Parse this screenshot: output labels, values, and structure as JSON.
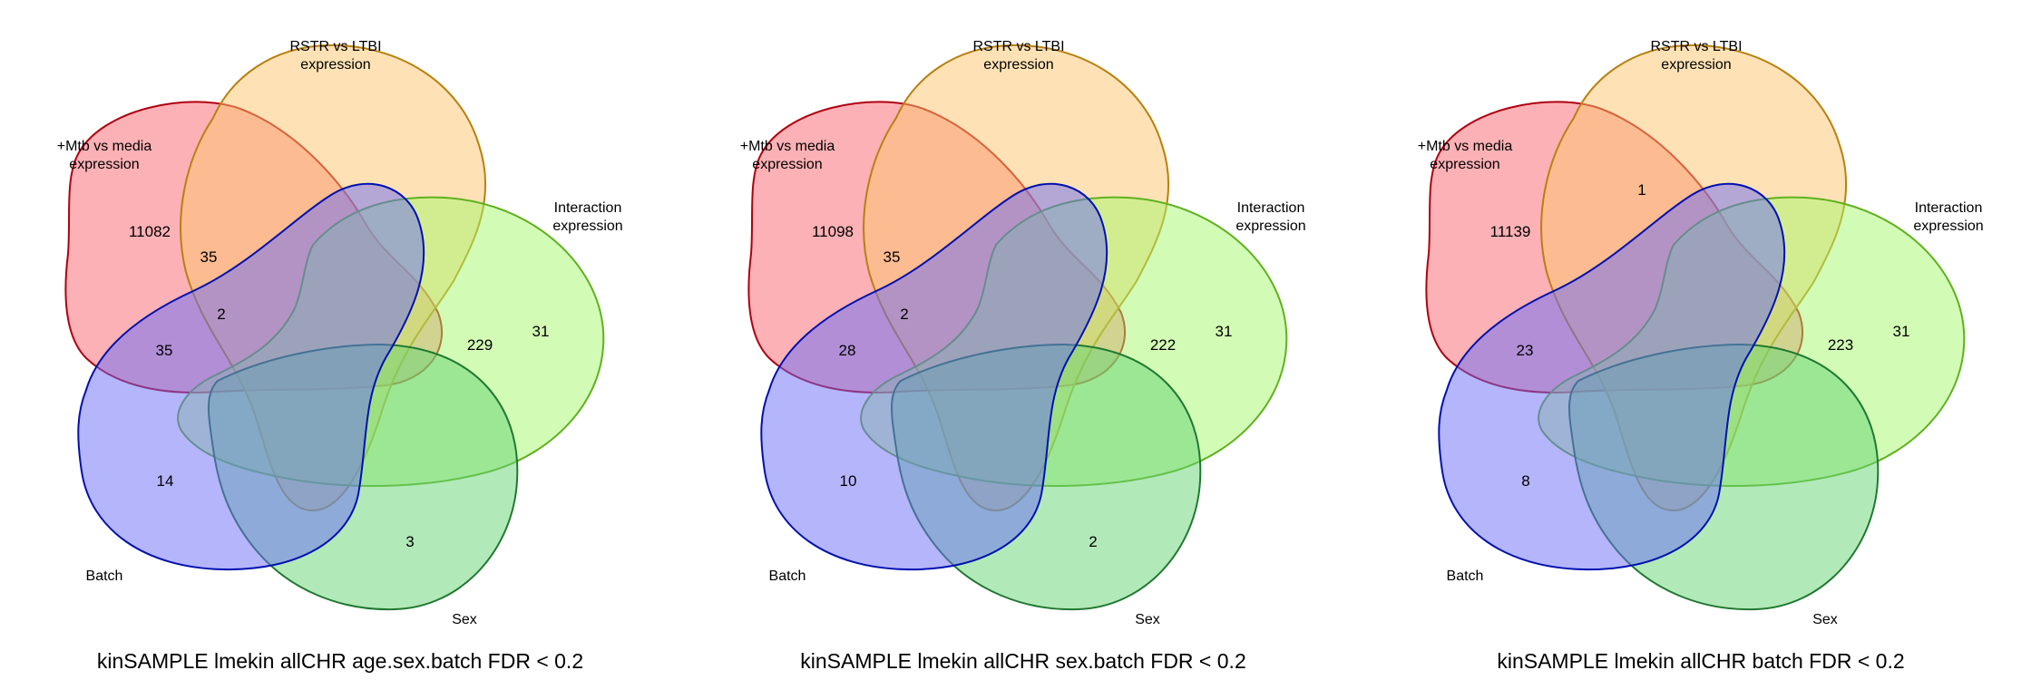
{
  "set_colors": {
    "mtb": "#f8646b",
    "rstr": "#fec56b",
    "interaction": "#a6f86b",
    "sex": "#66d373",
    "batch": "#6a6cf8"
  },
  "border_colors": {
    "mtb": "#b00010",
    "rstr": "#b88010",
    "interaction": "#60b020",
    "sex": "#207830",
    "batch": "#0010b0"
  },
  "panels": [
    {
      "title": "kinSAMPLE lmekin allCHR age.sex.batch FDR < 0.2",
      "labels": {
        "mtb": "+Mtb vs media\nexpression",
        "rstr": "RSTR vs LTBI\nexpression",
        "interaction": "Interaction\nexpression",
        "sex": "Sex",
        "batch": "Batch"
      },
      "counts": {
        "mtb_only": "11082",
        "mtb_rstr_batch": "35",
        "mtb_batch_core": "2",
        "mtb_batch": "35",
        "mtb_interaction": "229",
        "interaction_only": "31",
        "batch_only": "14",
        "sex_only": "3"
      }
    },
    {
      "title": "kinSAMPLE lmekin allCHR sex.batch FDR < 0.2",
      "labels": {
        "mtb": "+Mtb vs media\nexpression",
        "rstr": "RSTR vs LTBI\nexpression",
        "interaction": "Interaction\nexpression",
        "sex": "Sex",
        "batch": "Batch"
      },
      "counts": {
        "mtb_only": "11098",
        "mtb_rstr_batch": "35",
        "mtb_batch_core": "2",
        "mtb_batch": "28",
        "mtb_interaction": "222",
        "interaction_only": "31",
        "batch_only": "10",
        "sex_only": "2"
      }
    },
    {
      "title": "kinSAMPLE lmekin allCHR batch FDR < 0.2",
      "labels": {
        "mtb": "+Mtb vs media\nexpression",
        "rstr": "RSTR vs LTBI\nexpression",
        "interaction": "Interaction\nexpression",
        "sex": "Sex",
        "batch": "Batch"
      },
      "counts": {
        "mtb_rstr": "1",
        "mtb_only": "11139",
        "mtb_batch": "23",
        "mtb_interaction": "223",
        "interaction_only": "31",
        "batch_only": "8"
      }
    }
  ]
}
